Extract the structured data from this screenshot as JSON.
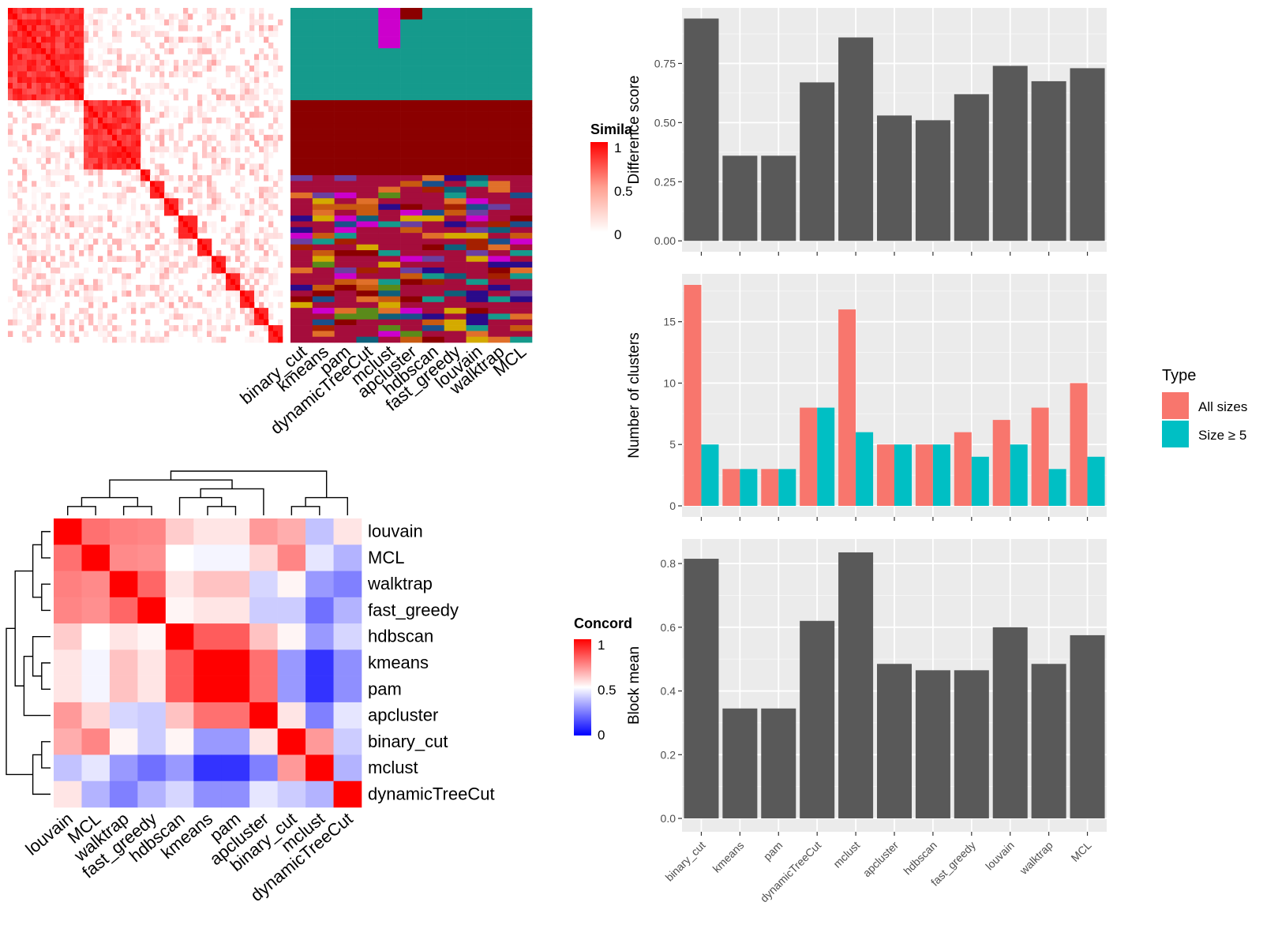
{
  "methods": [
    "binary_cut",
    "kmeans",
    "pam",
    "dynamicTreeCut",
    "mclust",
    "apcluster",
    "hdbscan",
    "fast_greedy",
    "louvain",
    "walktrap",
    "MCL"
  ],
  "similarity_heatmap": {
    "legend_title": "Simila",
    "legend_ticks": [
      "1",
      "0.5",
      "0"
    ],
    "column_labels": [
      "binary_cut",
      "kmeans",
      "pam",
      "dynamicTreeCut",
      "mclust",
      "apcluster",
      "hdbscan",
      "fast_greedy",
      "louvain",
      "walktrap",
      "MCL"
    ],
    "colors": {
      "high": "#ff0000",
      "low": "#ffffff"
    }
  },
  "membership_palette": [
    "#159a8c",
    "#8b0000",
    "#a50d3c",
    "#cc00cc",
    "#1a4f8a",
    "#2a0a8a",
    "#d4aa00",
    "#5a8a1a",
    "#c85a10",
    "#a52000",
    "#0f5f7a",
    "#6b3fa0",
    "#e0702a"
  ],
  "concordance_heatmap": {
    "legend_title": "Concord",
    "legend_ticks": [
      "1",
      "0.5",
      "0"
    ],
    "order": [
      "louvain",
      "MCL",
      "walktrap",
      "fast_greedy",
      "hdbscan",
      "kmeans",
      "pam",
      "apcluster",
      "binary_cut",
      "mclust",
      "dynamicTreeCut"
    ],
    "values": [
      [
        1.0,
        0.78,
        0.75,
        0.74,
        0.6,
        0.55,
        0.55,
        0.7,
        0.66,
        0.38,
        0.55
      ],
      [
        0.78,
        1.0,
        0.73,
        0.72,
        0.5,
        0.48,
        0.48,
        0.58,
        0.74,
        0.45,
        0.35
      ],
      [
        0.75,
        0.73,
        1.0,
        0.8,
        0.55,
        0.62,
        0.62,
        0.42,
        0.52,
        0.3,
        0.25
      ],
      [
        0.74,
        0.72,
        0.8,
        1.0,
        0.52,
        0.55,
        0.55,
        0.4,
        0.4,
        0.22,
        0.35
      ],
      [
        0.6,
        0.5,
        0.55,
        0.52,
        1.0,
        0.82,
        0.82,
        0.62,
        0.52,
        0.3,
        0.42
      ],
      [
        0.55,
        0.48,
        0.62,
        0.55,
        0.82,
        1.0,
        1.0,
        0.78,
        0.3,
        0.1,
        0.28
      ],
      [
        0.55,
        0.48,
        0.62,
        0.55,
        0.82,
        1.0,
        1.0,
        0.78,
        0.3,
        0.1,
        0.28
      ],
      [
        0.7,
        0.58,
        0.42,
        0.4,
        0.62,
        0.78,
        0.78,
        1.0,
        0.55,
        0.25,
        0.45
      ],
      [
        0.66,
        0.74,
        0.52,
        0.4,
        0.52,
        0.3,
        0.3,
        0.55,
        1.0,
        0.7,
        0.4
      ],
      [
        0.38,
        0.45,
        0.3,
        0.22,
        0.3,
        0.1,
        0.1,
        0.25,
        0.7,
        1.0,
        0.35
      ],
      [
        0.55,
        0.35,
        0.25,
        0.35,
        0.42,
        0.28,
        0.28,
        0.45,
        0.4,
        0.35,
        1.0
      ]
    ],
    "colors": {
      "high": "#ff0000",
      "mid": "#ffffff",
      "low": "#0000ff"
    }
  },
  "chart_data": [
    {
      "type": "bar",
      "categories": [
        "binary_cut",
        "kmeans",
        "pam",
        "dynamicTreeCut",
        "mclust",
        "apcluster",
        "hdbscan",
        "fast_greedy",
        "louvain",
        "walktrap",
        "MCL"
      ],
      "values": [
        0.94,
        0.36,
        0.36,
        0.67,
        0.86,
        0.53,
        0.51,
        0.62,
        0.74,
        0.675,
        0.73
      ],
      "ylabel": "Difference score",
      "yticks": [
        0.0,
        0.25,
        0.5,
        0.75
      ],
      "ytick_labels": [
        "0.00",
        "0.25",
        "0.50",
        "0.75"
      ],
      "ylim": [
        -0.046,
        0.985
      ],
      "bar_color": "#595959"
    },
    {
      "type": "bar",
      "categories": [
        "binary_cut",
        "kmeans",
        "pam",
        "dynamicTreeCut",
        "mclust",
        "apcluster",
        "hdbscan",
        "fast_greedy",
        "louvain",
        "walktrap",
        "MCL"
      ],
      "series": [
        {
          "name": "All sizes",
          "values": [
            18,
            3,
            3,
            8,
            16,
            5,
            5,
            6,
            7,
            8,
            10
          ],
          "color": "#f8766d"
        },
        {
          "name": "Size ≥ 5",
          "values": [
            5,
            3,
            3,
            8,
            6,
            5,
            5,
            4,
            5,
            3,
            4
          ],
          "color": "#00bfc4"
        }
      ],
      "ylabel": "Number of clusters",
      "legend_title": "Type",
      "yticks": [
        0,
        5,
        10,
        15
      ],
      "ytick_labels": [
        "0",
        "5",
        "10",
        "15"
      ],
      "ylim": [
        -0.9,
        18.9
      ]
    },
    {
      "type": "bar",
      "categories": [
        "binary_cut",
        "kmeans",
        "pam",
        "dynamicTreeCut",
        "mclust",
        "apcluster",
        "hdbscan",
        "fast_greedy",
        "louvain",
        "walktrap",
        "MCL"
      ],
      "values": [
        0.815,
        0.345,
        0.345,
        0.62,
        0.835,
        0.485,
        0.465,
        0.465,
        0.6,
        0.485,
        0.575
      ],
      "ylabel": "Block mean",
      "yticks": [
        0.0,
        0.2,
        0.4,
        0.6,
        0.8
      ],
      "ytick_labels": [
        "0.0",
        "0.2",
        "0.4",
        "0.6",
        "0.8"
      ],
      "ylim": [
        -0.042,
        0.877
      ],
      "bar_color": "#595959"
    }
  ]
}
